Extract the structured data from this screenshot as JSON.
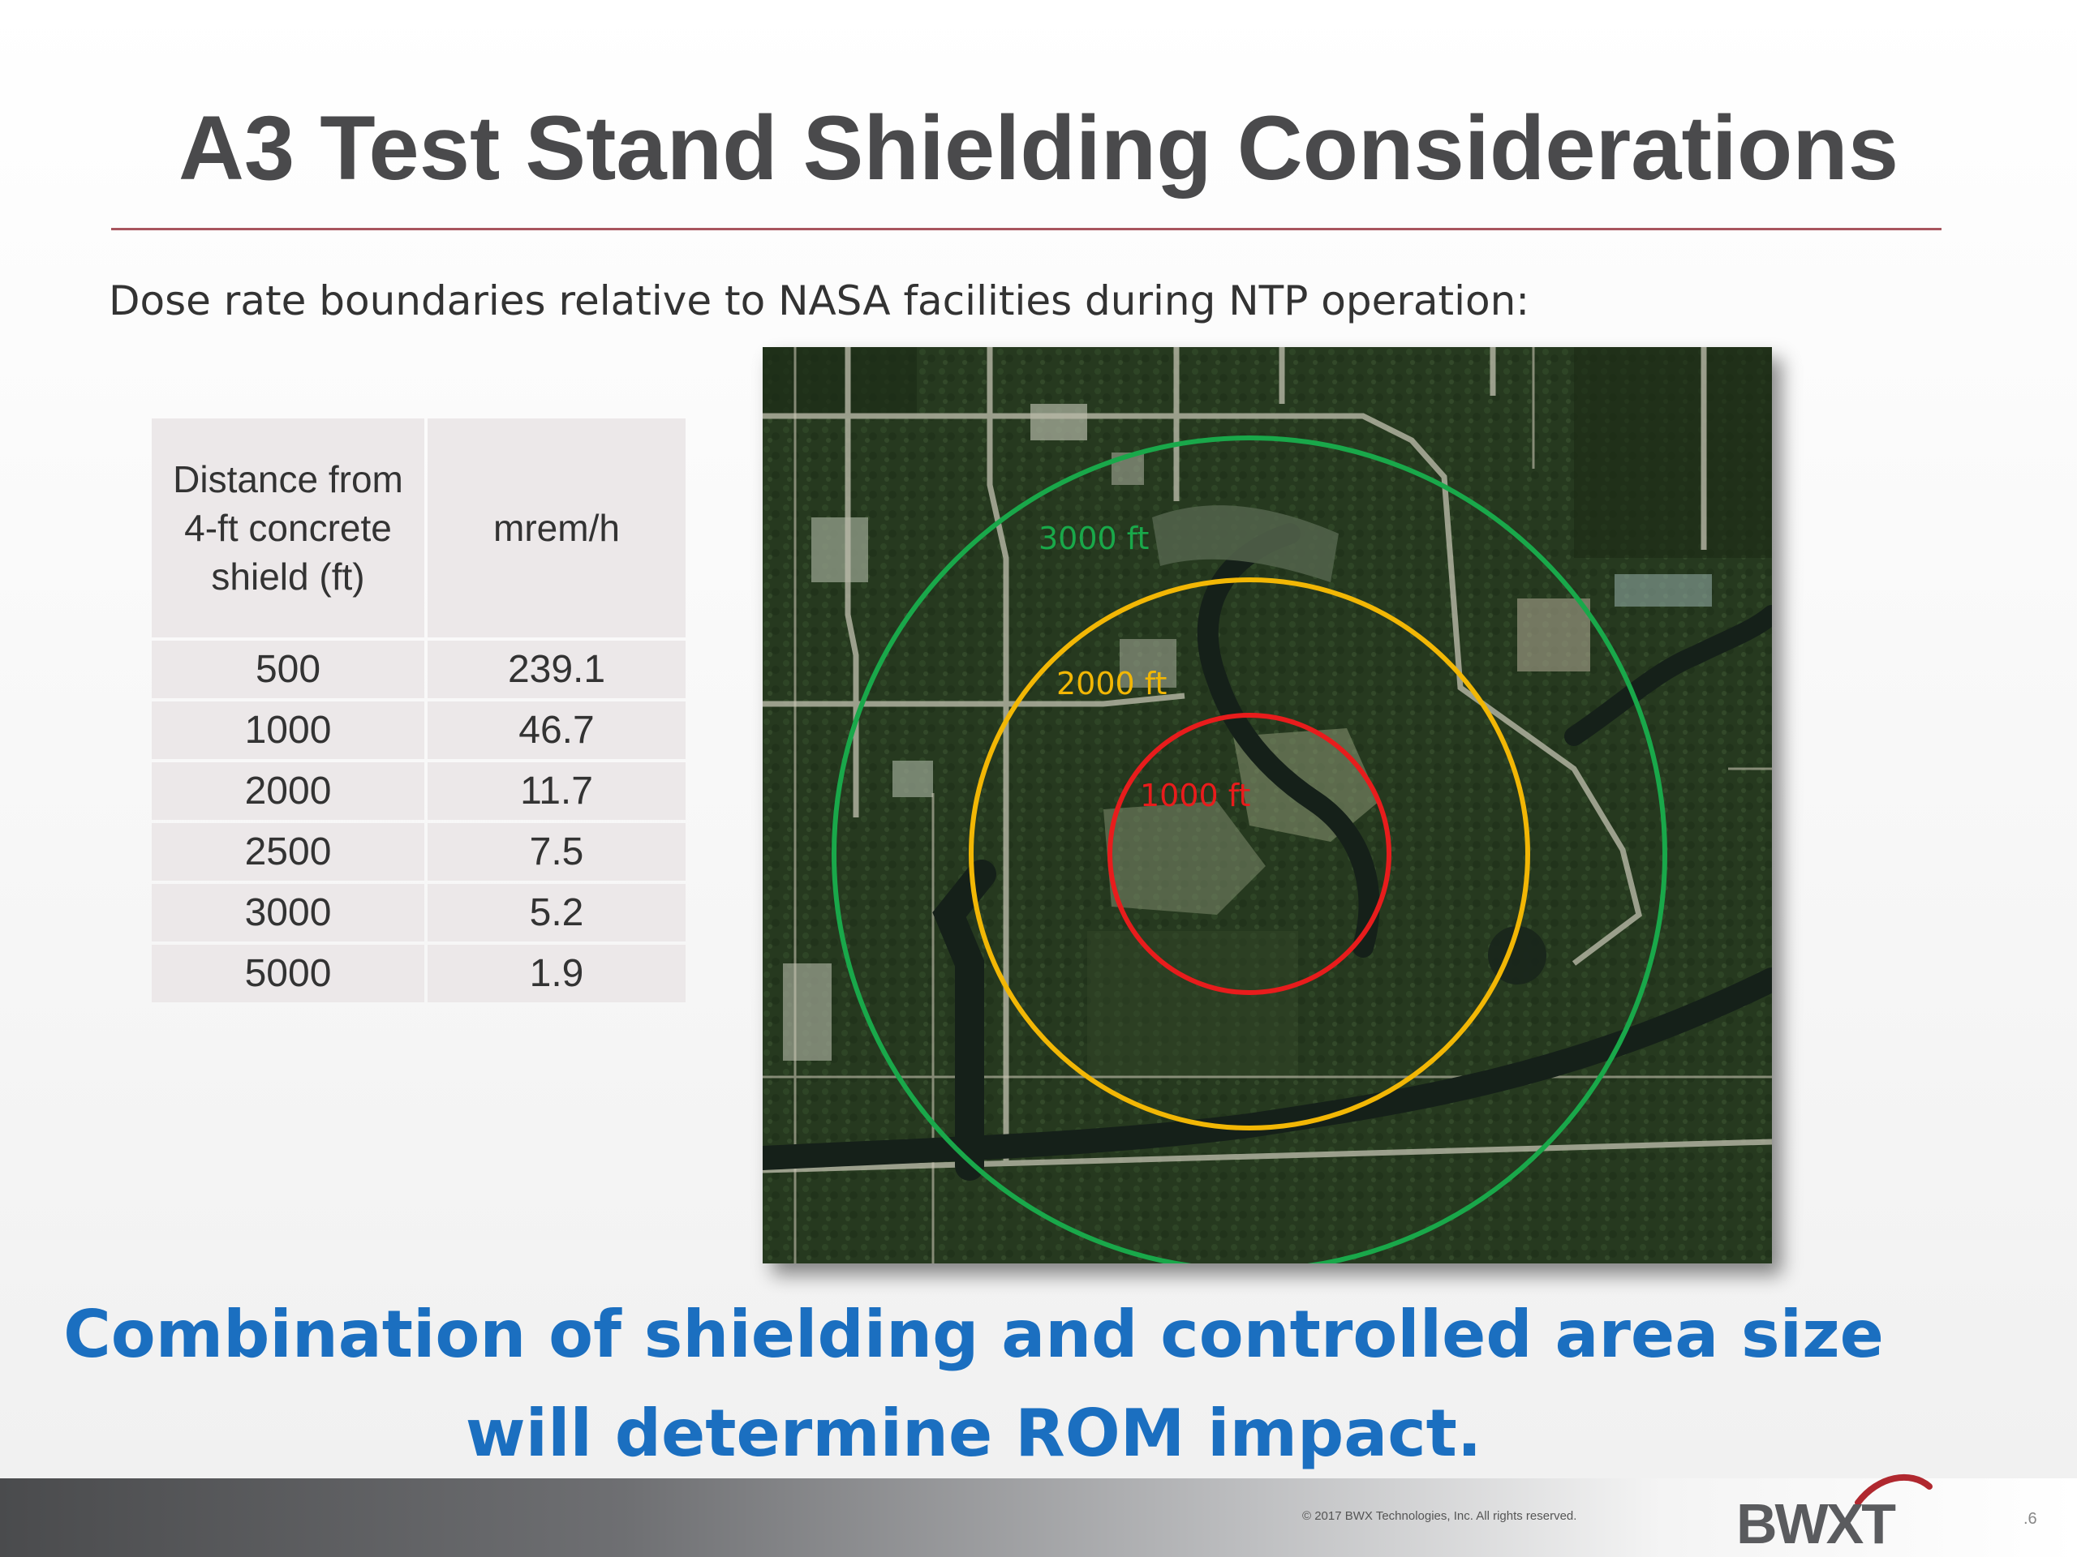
{
  "slide": {
    "title": "A3 Test Stand Shielding Considerations",
    "subtitle": "Dose rate boundaries relative to NASA facilities during NTP operation:",
    "conclusion_lines": [
      "Combination of shielding and controlled area size",
      "will determine ROM impact."
    ],
    "copyright": "© 2017 BWX Technologies, Inc. All rights reserved.",
    "page_number": ".6",
    "logo_text": "BWXT"
  },
  "table": {
    "headers": [
      "Distance from 4-ft concrete shield (ft)",
      "mrem/h"
    ],
    "rows": [
      [
        "500",
        "239.1"
      ],
      [
        "1000",
        "46.7"
      ],
      [
        "2000",
        "11.7"
      ],
      [
        "2500",
        "7.5"
      ],
      [
        "3000",
        "5.2"
      ],
      [
        "5000",
        "1.9"
      ]
    ]
  },
  "map": {
    "rings": [
      {
        "label": "3000 ft",
        "color": "#19a84a"
      },
      {
        "label": "2000 ft",
        "color": "#f2b705"
      },
      {
        "label": "1000 ft",
        "color": "#e81c1c"
      }
    ]
  },
  "colors": {
    "title": "#4a4a4c",
    "rule": "#a8555e",
    "conclusion": "#1b6fc0",
    "table_cell": "#ece8e9"
  }
}
